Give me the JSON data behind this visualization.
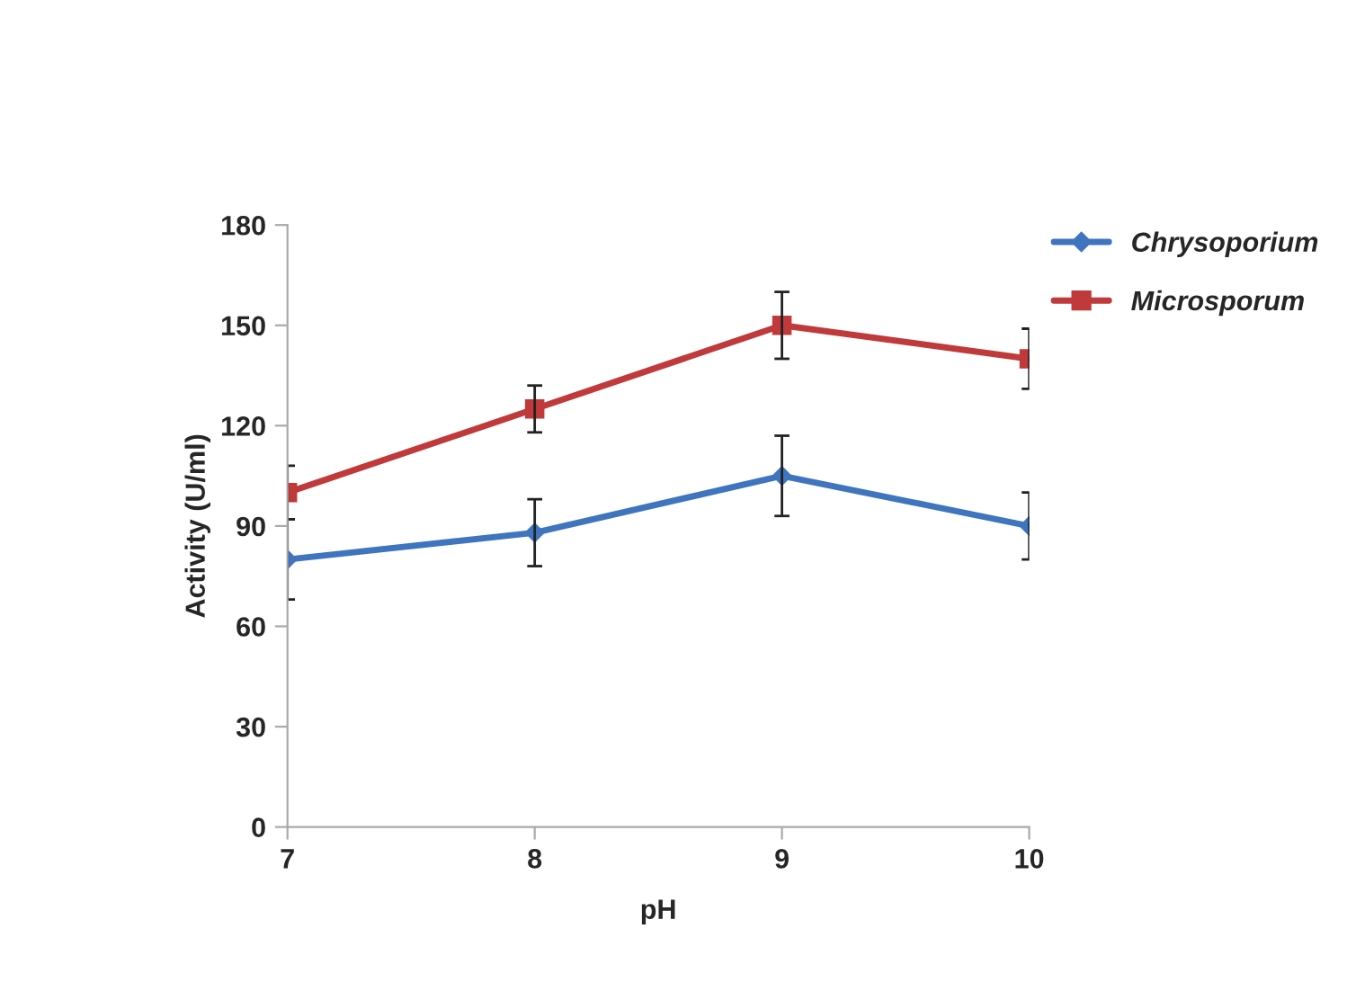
{
  "chart_data": {
    "type": "line",
    "xlabel": "pH",
    "ylabel": "Activity (U/ml)",
    "x": [
      7,
      8,
      9,
      10
    ],
    "series": [
      {
        "name": "Chrysoporium",
        "color": "#3f74bf",
        "marker": "diamond",
        "values": [
          80,
          88,
          105,
          90
        ],
        "errors": [
          12,
          10,
          12,
          10
        ]
      },
      {
        "name": "Microsporum",
        "color": "#c0393b",
        "marker": "square",
        "values": [
          100,
          125,
          150,
          140
        ],
        "errors": [
          8,
          7,
          10,
          9
        ]
      }
    ],
    "xlim": [
      7,
      10
    ],
    "xticks": [
      7,
      8,
      9,
      10
    ],
    "ylim": [
      0,
      180
    ],
    "yticks": [
      0,
      30,
      60,
      90,
      120,
      150,
      180
    ],
    "grid": false,
    "legend": "top right",
    "line_style": "solid"
  }
}
